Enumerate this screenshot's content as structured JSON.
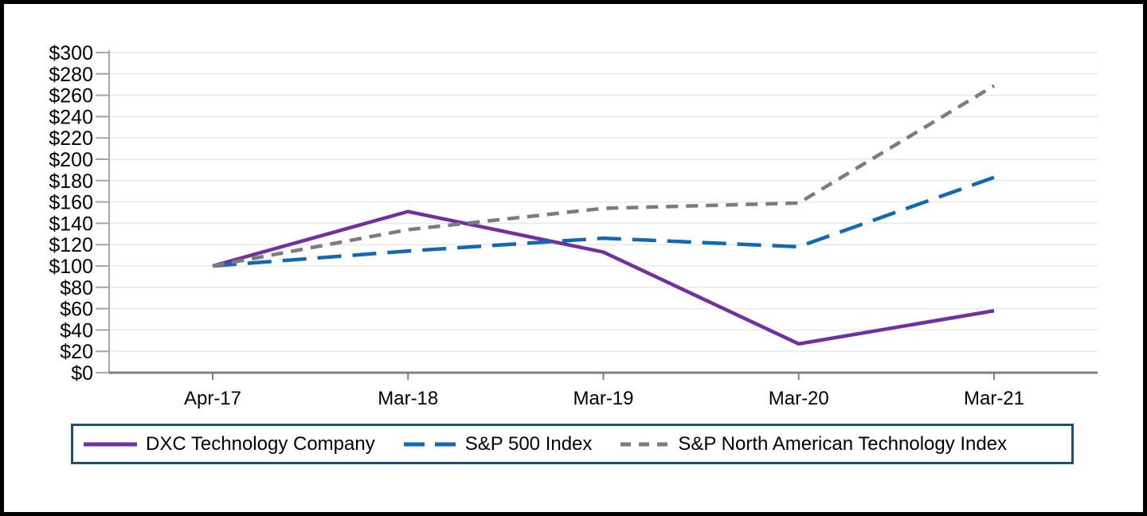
{
  "chart_data": {
    "type": "line",
    "title": "",
    "xlabel": "",
    "ylabel": "",
    "categories": [
      "Apr-17",
      "Mar-18",
      "Mar-19",
      "Mar-20",
      "Mar-21"
    ],
    "series": [
      {
        "name": "DXC Technology Company",
        "color": "#7030A0",
        "dash": "solid",
        "values": [
          100,
          151,
          113,
          27,
          58
        ]
      },
      {
        "name": "S&P 500 Index",
        "color": "#1268B3",
        "dash": "long-dash",
        "values": [
          100,
          114,
          126,
          118,
          183
        ]
      },
      {
        "name": "S&P North American Technology Index",
        "color": "#7C7C7C",
        "dash": "short-dash",
        "values": [
          100,
          134,
          154,
          159,
          269
        ]
      }
    ],
    "ylim": [
      0,
      300
    ],
    "y_tick_step": 20,
    "y_tick_labels": [
      "$0",
      "$20",
      "$40",
      "$60",
      "$80",
      "$100",
      "$120",
      "$140",
      "$160",
      "$180",
      "$200",
      "$220",
      "$240",
      "$260",
      "$280",
      "$300"
    ],
    "grid": "horizontal-on",
    "legend_position": "bottom",
    "legend_border_color": "#1F4E79",
    "gridline_color": "#E8E8E8",
    "x_axis_color": "#808080",
    "y_axis_color": "#A6A6A6",
    "text_color": "#000000"
  }
}
